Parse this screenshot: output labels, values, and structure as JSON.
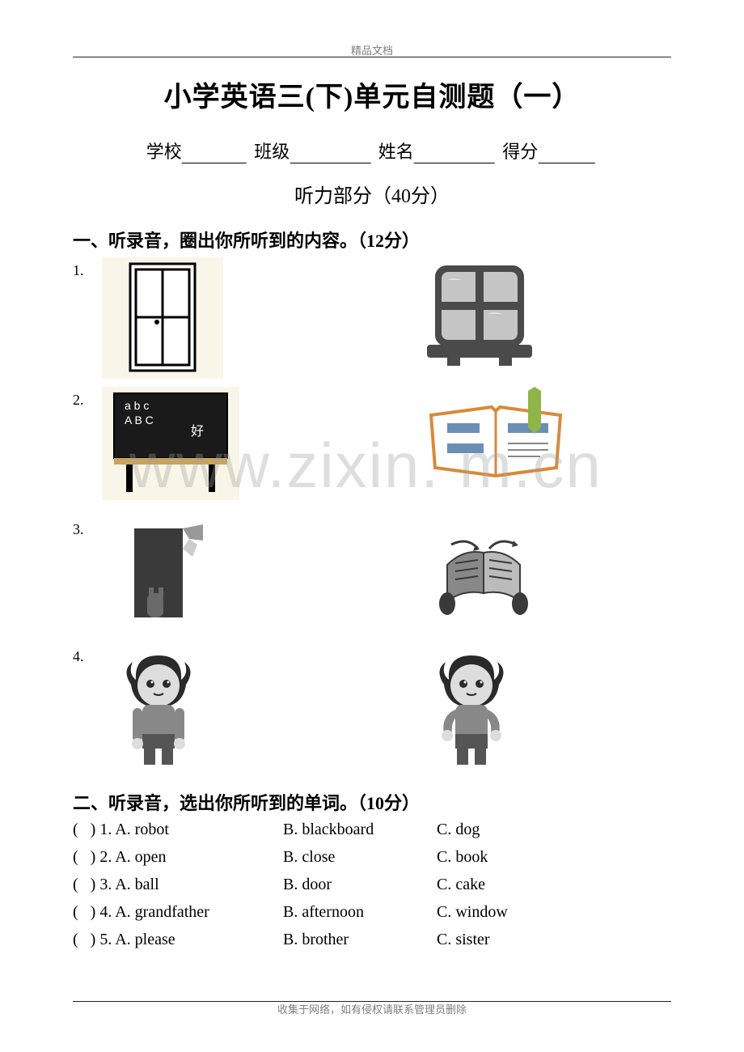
{
  "header": {
    "tag": "精品文档"
  },
  "title": "小学英语三(下)单元自测题（一）",
  "info": {
    "school": "学校",
    "class": "班级",
    "name": "姓名",
    "score": "得分",
    "blank_widths": {
      "school": 80,
      "class": 100,
      "name": 100,
      "score": 70
    }
  },
  "subtitle": "听力部分（40分）",
  "section1": {
    "heading": "一、听录音，圈出你所听到的内容。（12分）",
    "rows": [
      {
        "num": "1.",
        "left": "door",
        "right": "window"
      },
      {
        "num": "2.",
        "left": "blackboard",
        "right": "book"
      },
      {
        "num": "3.",
        "left": "close-door",
        "right": "open-book"
      },
      {
        "num": "4.",
        "left": "boy-front",
        "right": "boy-hold"
      }
    ]
  },
  "section2": {
    "heading": "二、听录音，选出你所听到的单词。（10分）",
    "items": [
      {
        "n": "1",
        "a": "robot",
        "b": "blackboard",
        "c": "dog"
      },
      {
        "n": "2",
        "a": "open",
        "b": "close",
        "c": "book"
      },
      {
        "n": "3",
        "a": "ball",
        "b": "door",
        "c": "cake"
      },
      {
        "n": "4",
        "a": "grandfather",
        "b": "afternoon",
        "c": "window"
      },
      {
        "n": "5",
        "a": "please",
        "b": "brother",
        "c": "sister"
      }
    ]
  },
  "watermark": "www.zixin.  m.cn",
  "footer": {
    "tag": "收集于网络，如有侵权请联系管理员删除"
  },
  "colors": {
    "text": "#000000",
    "gray": "#6a6a6a",
    "dark": "#3a3a3a",
    "cream": "#f9f5e8",
    "green": "#8fb54a",
    "orange": "#d88a3a",
    "tan": "#c9a55a"
  }
}
